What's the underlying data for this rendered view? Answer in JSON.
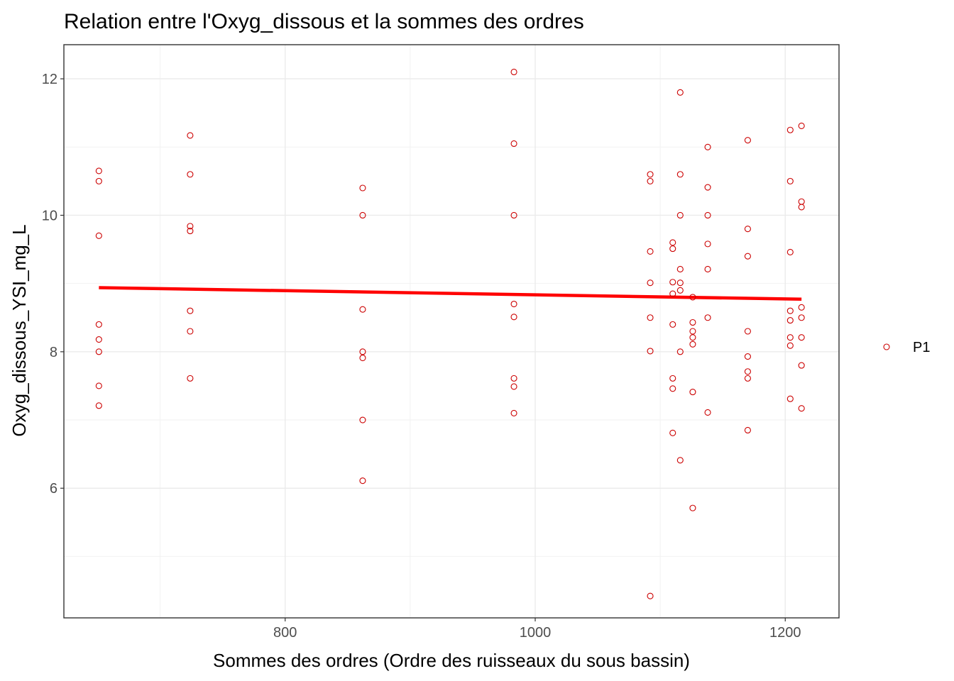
{
  "chart_data": {
    "type": "scatter",
    "title": "Relation entre l'Oxyg_dissous et la sommes des ordres",
    "xlabel": "Sommes des ordres (Ordre des ruisseaux du sous bassin)",
    "ylabel": "Oxyg_dissous_YSI_mg_L",
    "xlim": [
      623,
      1243
    ],
    "ylim": [
      4.1,
      12.5
    ],
    "x_ticks": [
      800,
      1000,
      1200
    ],
    "y_ticks": [
      6,
      8,
      10,
      12
    ],
    "x_tick_labels": [
      "800",
      "1000",
      "1200"
    ],
    "y_tick_labels": [
      "6",
      "8",
      "10",
      "12"
    ],
    "grid": true,
    "legend_position": "right",
    "marker_color": "#cc0000",
    "trend_color": "#ff0000",
    "series": [
      {
        "name": "P1",
        "points": [
          {
            "x": 651,
            "y": 10.65
          },
          {
            "x": 651,
            "y": 10.5
          },
          {
            "x": 651,
            "y": 9.7
          },
          {
            "x": 651,
            "y": 8.4
          },
          {
            "x": 651,
            "y": 8.18
          },
          {
            "x": 651,
            "y": 8.0
          },
          {
            "x": 651,
            "y": 7.5
          },
          {
            "x": 651,
            "y": 7.21
          },
          {
            "x": 724,
            "y": 11.17
          },
          {
            "x": 724,
            "y": 10.6
          },
          {
            "x": 724,
            "y": 9.84
          },
          {
            "x": 724,
            "y": 9.77
          },
          {
            "x": 724,
            "y": 8.6
          },
          {
            "x": 724,
            "y": 8.3
          },
          {
            "x": 724,
            "y": 7.61
          },
          {
            "x": 862,
            "y": 10.4
          },
          {
            "x": 862,
            "y": 10.0
          },
          {
            "x": 862,
            "y": 8.62
          },
          {
            "x": 862,
            "y": 8.0
          },
          {
            "x": 862,
            "y": 7.91
          },
          {
            "x": 862,
            "y": 7.0
          },
          {
            "x": 862,
            "y": 6.11
          },
          {
            "x": 983,
            "y": 12.1
          },
          {
            "x": 983,
            "y": 11.05
          },
          {
            "x": 983,
            "y": 10.0
          },
          {
            "x": 983,
            "y": 8.7
          },
          {
            "x": 983,
            "y": 8.51
          },
          {
            "x": 983,
            "y": 7.61
          },
          {
            "x": 983,
            "y": 7.49
          },
          {
            "x": 983,
            "y": 7.1
          },
          {
            "x": 1092,
            "y": 10.6
          },
          {
            "x": 1092,
            "y": 10.5
          },
          {
            "x": 1092,
            "y": 9.47
          },
          {
            "x": 1092,
            "y": 9.01
          },
          {
            "x": 1092,
            "y": 8.5
          },
          {
            "x": 1092,
            "y": 8.01
          },
          {
            "x": 1092,
            "y": 4.42
          },
          {
            "x": 1110,
            "y": 9.6
          },
          {
            "x": 1110,
            "y": 9.51
          },
          {
            "x": 1110,
            "y": 9.02
          },
          {
            "x": 1110,
            "y": 8.85
          },
          {
            "x": 1110,
            "y": 8.4
          },
          {
            "x": 1110,
            "y": 7.61
          },
          {
            "x": 1110,
            "y": 7.46
          },
          {
            "x": 1110,
            "y": 6.81
          },
          {
            "x": 1116,
            "y": 11.8
          },
          {
            "x": 1116,
            "y": 10.6
          },
          {
            "x": 1116,
            "y": 10.0
          },
          {
            "x": 1116,
            "y": 9.21
          },
          {
            "x": 1116,
            "y": 9.01
          },
          {
            "x": 1116,
            "y": 8.9
          },
          {
            "x": 1116,
            "y": 8.0
          },
          {
            "x": 1116,
            "y": 6.41
          },
          {
            "x": 1126,
            "y": 8.8
          },
          {
            "x": 1126,
            "y": 8.43
          },
          {
            "x": 1126,
            "y": 8.3
          },
          {
            "x": 1126,
            "y": 8.21
          },
          {
            "x": 1126,
            "y": 8.11
          },
          {
            "x": 1126,
            "y": 7.41
          },
          {
            "x": 1126,
            "y": 5.71
          },
          {
            "x": 1138,
            "y": 11.0
          },
          {
            "x": 1138,
            "y": 10.41
          },
          {
            "x": 1138,
            "y": 10.0
          },
          {
            "x": 1138,
            "y": 9.58
          },
          {
            "x": 1138,
            "y": 9.21
          },
          {
            "x": 1138,
            "y": 8.5
          },
          {
            "x": 1138,
            "y": 7.11
          },
          {
            "x": 1170,
            "y": 11.1
          },
          {
            "x": 1170,
            "y": 9.8
          },
          {
            "x": 1170,
            "y": 9.4
          },
          {
            "x": 1170,
            "y": 8.3
          },
          {
            "x": 1170,
            "y": 7.93
          },
          {
            "x": 1170,
            "y": 7.71
          },
          {
            "x": 1170,
            "y": 7.61
          },
          {
            "x": 1170,
            "y": 6.85
          },
          {
            "x": 1204,
            "y": 11.25
          },
          {
            "x": 1204,
            "y": 10.5
          },
          {
            "x": 1204,
            "y": 9.46
          },
          {
            "x": 1204,
            "y": 8.6
          },
          {
            "x": 1204,
            "y": 8.46
          },
          {
            "x": 1204,
            "y": 8.21
          },
          {
            "x": 1204,
            "y": 8.09
          },
          {
            "x": 1204,
            "y": 7.31
          },
          {
            "x": 1213,
            "y": 11.31
          },
          {
            "x": 1213,
            "y": 10.2
          },
          {
            "x": 1213,
            "y": 10.12
          },
          {
            "x": 1213,
            "y": 8.65
          },
          {
            "x": 1213,
            "y": 8.5
          },
          {
            "x": 1213,
            "y": 8.21
          },
          {
            "x": 1213,
            "y": 7.8
          },
          {
            "x": 1213,
            "y": 7.17
          }
        ]
      }
    ],
    "trend_line": {
      "x": [
        651,
        1213
      ],
      "y": [
        8.94,
        8.77
      ]
    }
  }
}
